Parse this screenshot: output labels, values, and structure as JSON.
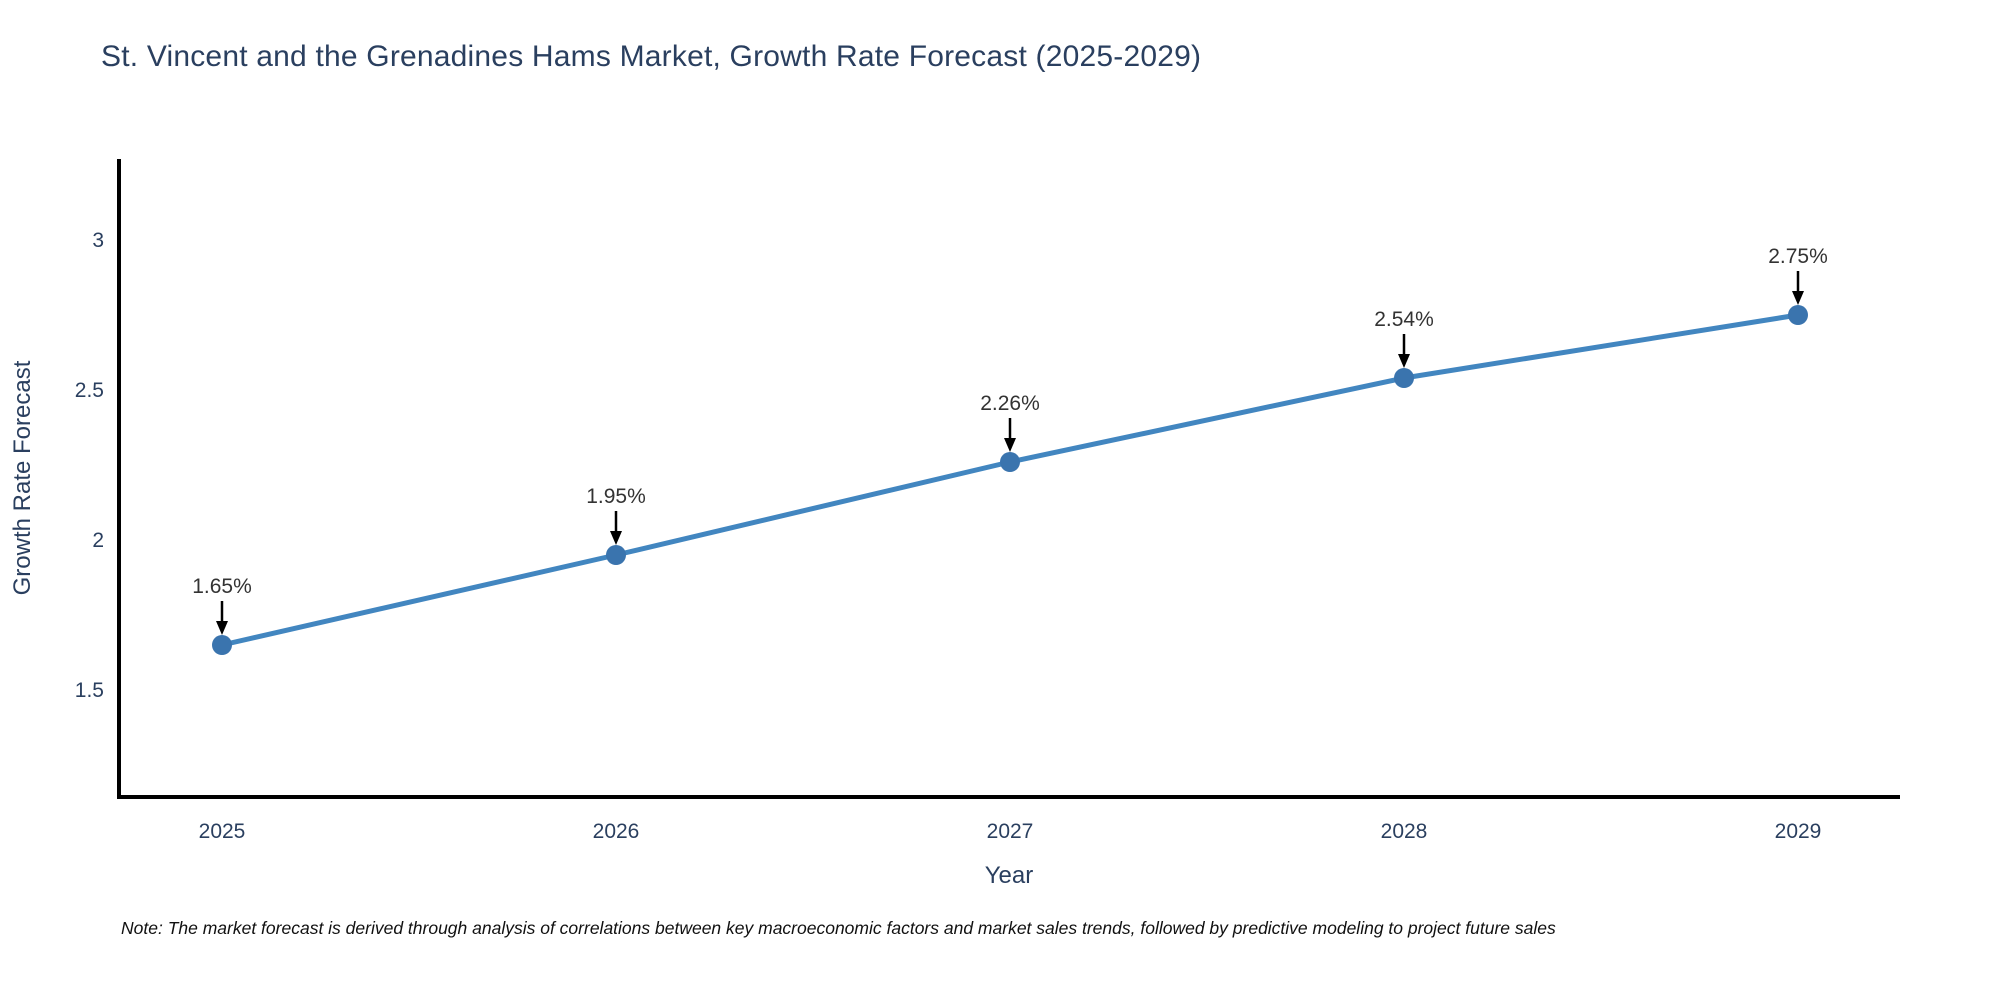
{
  "title": "St. Vincent and the Grenadines Hams Market, Growth Rate Forecast (2025-2029)",
  "note": "Note: The market forecast is derived through analysis of correlations between key macroeconomic factors and market sales trends, followed by predictive modeling to project future sales",
  "colors": {
    "title_text": "#2a3f5f",
    "axis_line": "#000000",
    "tick_label": "#2a3f5f",
    "axis_title": "#2a3f5f",
    "series_line": "#4286c0",
    "marker_fill": "#3a74ae",
    "annotation_text": "#333333",
    "annotation_arrow": "#000000",
    "background": "#ffffff"
  },
  "chart_data": {
    "type": "line",
    "title": "St. Vincent and the Grenadines Hams Market, Growth Rate Forecast (2025-2029)",
    "xlabel": "Year",
    "ylabel": "Growth Rate Forecast",
    "x": [
      2025,
      2026,
      2027,
      2028,
      2029
    ],
    "y": [
      1.65,
      1.95,
      2.26,
      2.54,
      2.75
    ],
    "point_labels": [
      "1.65%",
      "1.95%",
      "2.26%",
      "2.54%",
      "2.75%"
    ],
    "x_tick_labels": [
      "2025",
      "2026",
      "2027",
      "2028",
      "2029"
    ],
    "y_tick_values": [
      3,
      2.5,
      2,
      1.5
    ],
    "y_tick_labels": [
      "3",
      "2.5",
      "2",
      "1.5"
    ],
    "xlim": [
      2024.74,
      2029.26
    ],
    "ylim": [
      1.14,
      3.27
    ],
    "grid": false,
    "legend": false,
    "marker_style": "circle",
    "annotation_style": "value label above each point with black arrow pointing down to marker"
  }
}
